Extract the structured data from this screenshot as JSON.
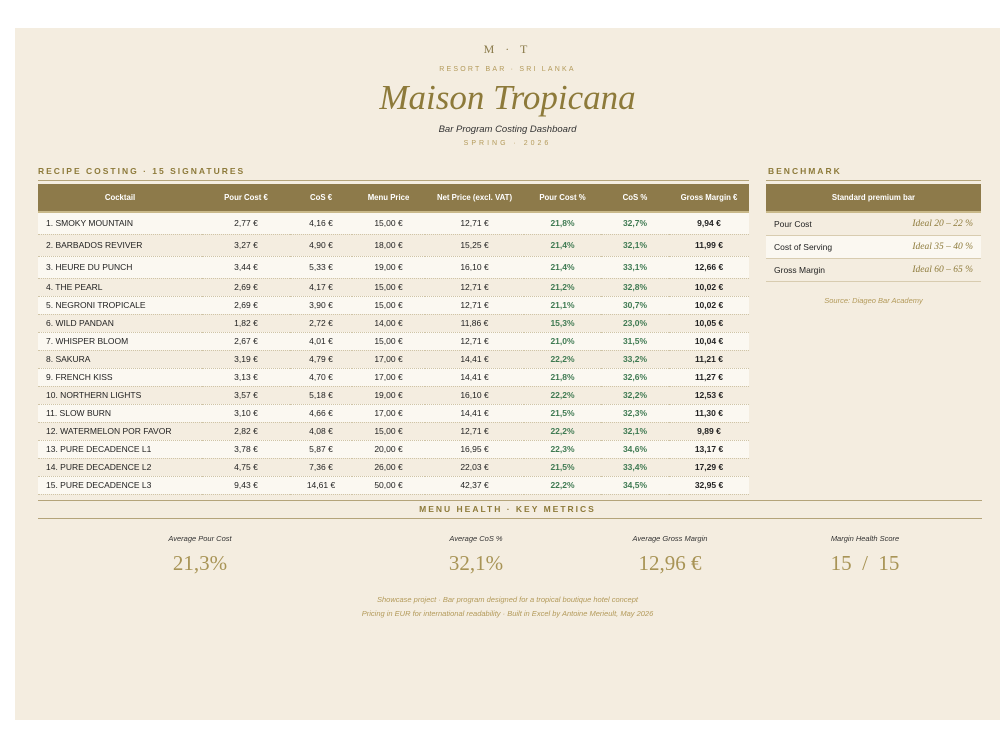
{
  "header": {
    "monogram": "M · T",
    "kicker": "RESORT BAR · SRI LANKA",
    "title": "Maison Tropicana",
    "subtitle": "Bar Program Costing Dashboard",
    "season": "SPRING · 2026"
  },
  "recipe_section": {
    "title": "RECIPE COSTING · 15 SIGNATURES",
    "columns": [
      "Cocktail",
      "Pour Cost €",
      "CoS €",
      "Menu Price",
      "Net Price (excl. VAT)",
      "Pour Cost %",
      "CoS %",
      "Gross Margin €"
    ],
    "rows": [
      [
        "1. SMOKY MOUNTAIN",
        "2,77 €",
        "4,16 €",
        "15,00 €",
        "12,71 €",
        "21,8%",
        "32,7%",
        "9,94 €"
      ],
      [
        "2. BARBADOS REVIVER",
        "3,27 €",
        "4,90 €",
        "18,00 €",
        "15,25 €",
        "21,4%",
        "32,1%",
        "11,99 €"
      ],
      [
        "3. HEURE DU PUNCH",
        "3,44 €",
        "5,33 €",
        "19,00 €",
        "16,10 €",
        "21,4%",
        "33,1%",
        "12,66 €"
      ],
      [
        "4. THE PEARL",
        "2,69 €",
        "4,17 €",
        "15,00 €",
        "12,71 €",
        "21,2%",
        "32,8%",
        "10,02 €"
      ],
      [
        "5. NEGRONI TROPICALE",
        "2,69 €",
        "3,90 €",
        "15,00 €",
        "12,71 €",
        "21,1%",
        "30,7%",
        "10,02 €"
      ],
      [
        "6. WILD PANDAN",
        "1,82 €",
        "2,72 €",
        "14,00 €",
        "11,86 €",
        "15,3%",
        "23,0%",
        "10,05 €"
      ],
      [
        "7. WHISPER BLOOM",
        "2,67 €",
        "4,01 €",
        "15,00 €",
        "12,71 €",
        "21,0%",
        "31,5%",
        "10,04 €"
      ],
      [
        "8. SAKURA",
        "3,19 €",
        "4,79 €",
        "17,00 €",
        "14,41 €",
        "22,2%",
        "33,2%",
        "11,21 €"
      ],
      [
        "9. FRENCH KISS",
        "3,13 €",
        "4,70 €",
        "17,00 €",
        "14,41 €",
        "21,8%",
        "32,6%",
        "11,27 €"
      ],
      [
        "10. NORTHERN LIGHTS",
        "3,57 €",
        "5,18 €",
        "19,00 €",
        "16,10 €",
        "22,2%",
        "32,2%",
        "12,53 €"
      ],
      [
        "11. SLOW BURN",
        "3,10 €",
        "4,66 €",
        "17,00 €",
        "14,41 €",
        "21,5%",
        "32,3%",
        "11,30 €"
      ],
      [
        "12. WATERMELON POR FAVOR",
        "2,82 €",
        "4,08 €",
        "15,00 €",
        "12,71 €",
        "22,2%",
        "32,1%",
        "9,89 €"
      ],
      [
        "13. PURE DECADENCE L1",
        "3,78 €",
        "5,87 €",
        "20,00 €",
        "16,95 €",
        "22,3%",
        "34,6%",
        "13,17 €"
      ],
      [
        "14. PURE DECADENCE L2",
        "4,75 €",
        "7,36 €",
        "26,00 €",
        "22,03 €",
        "21,5%",
        "33,4%",
        "17,29 €"
      ],
      [
        "15. PURE DECADENCE L3",
        "9,43 €",
        "14,61 €",
        "50,00 €",
        "42,37 €",
        "22,2%",
        "34,5%",
        "32,95 €"
      ]
    ]
  },
  "benchmark": {
    "title": "BENCHMARK",
    "header": "Standard premium bar",
    "rows": [
      {
        "label": "Pour Cost",
        "value": "Ideal  20 – 22 %"
      },
      {
        "label": "Cost of Serving",
        "value": "Ideal  35 – 40 %"
      },
      {
        "label": "Gross Margin",
        "value": "Ideal  60 – 65 %"
      }
    ],
    "source": "Source: Diageo Bar Academy"
  },
  "metrics": {
    "title": "MENU HEALTH · KEY METRICS",
    "items": [
      {
        "label": "Average Pour Cost",
        "value": "21,3%"
      },
      {
        "label": "Average CoS %",
        "value": "32,1%"
      },
      {
        "label": "Average Gross Margin",
        "value": "12,96 €"
      },
      {
        "label": "Margin Health Score",
        "value": "15  /  15"
      }
    ]
  },
  "footer": {
    "line1": "Showcase project  ·  Bar program designed for a tropical boutique hotel concept",
    "line2": "Pricing in EUR for international readability  ·  Built in Excel by Antoine Merieult, May 2026"
  },
  "colors": {
    "accent": "#8d7a4a",
    "background": "#f4ede0",
    "positive_pct": "#3f7a52"
  }
}
